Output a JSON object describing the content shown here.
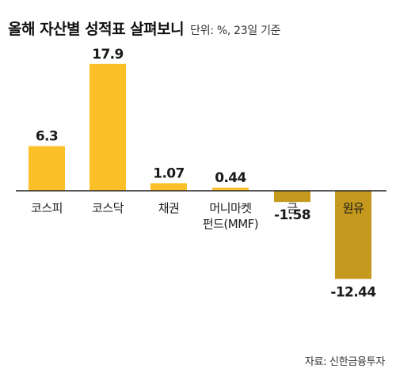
{
  "header": {
    "title": "올해 자산별 성적표 살펴보니",
    "unit": "단위: %, 23일 기준"
  },
  "source": "자료: 신한금융투자",
  "colors": {
    "positive": "#FBBF28",
    "negative": "#C4991E",
    "axis": "#222222",
    "text": "#1a1a1a"
  },
  "chart_data": {
    "type": "bar",
    "title": "올해 자산별 성적표 살펴보니",
    "xlabel": "",
    "ylabel": "",
    "ylim": [
      -13,
      19
    ],
    "grid": false,
    "categories": [
      [
        "코스피"
      ],
      [
        "코스닥"
      ],
      [
        "채권"
      ],
      [
        "머니마켓",
        "펀드(MMF)"
      ],
      [
        "금"
      ],
      [
        "원유"
      ]
    ],
    "values": [
      6.3,
      17.9,
      1.07,
      0.44,
      -1.58,
      -12.44
    ],
    "value_labels": [
      "6.3",
      "17.9",
      "1.07",
      "0.44",
      "-1.58",
      "-12.44"
    ]
  }
}
